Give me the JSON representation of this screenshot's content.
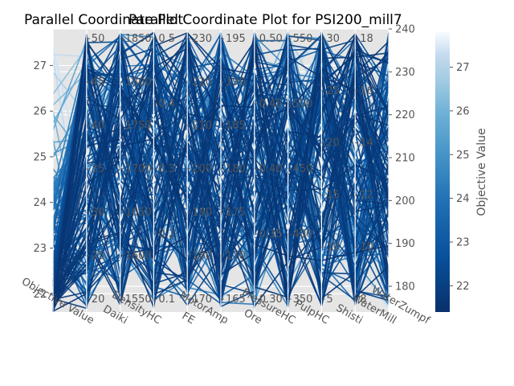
{
  "chart_data": {
    "type": "parallel_coordinates",
    "titles": [
      "Parallel Coordinate Plot",
      "Parallel Coordinate Plot for PSI200_mill7"
    ],
    "axes": [
      "Objective Value",
      "Daiki",
      "DensityHC",
      "FE",
      "MotorAmp",
      "Ore",
      "PressureHC",
      "PulpHC",
      "Shisti",
      "WaterMill",
      "WaterZumpf"
    ],
    "left_axis": {
      "ticks": [
        "22",
        "23",
        "24",
        "25",
        "26",
        "27"
      ],
      "range": [
        21.6,
        27.8
      ]
    },
    "right_axis": {
      "ticks": [
        "180",
        "190",
        "200",
        "210",
        "220",
        "230",
        "240"
      ],
      "range": [
        174,
        240
      ]
    },
    "colorbar": {
      "label": "Objective Value",
      "ticks": [
        "22",
        "23",
        "24",
        "25",
        "26",
        "27"
      ],
      "range": [
        21.4,
        27.8
      ],
      "colormap": "Blues_r"
    },
    "axis_tick_labels": {
      "Daiki": [
        "50",
        "45",
        "40",
        "35",
        "30",
        "25",
        "20"
      ],
      "DensityHC": [
        "1850",
        "1800",
        "1750",
        "1700",
        "1650",
        "1600",
        "1550"
      ],
      "FE": [
        "0.5",
        "0.4",
        "0.3",
        "0.2",
        "0.1"
      ],
      "MotorAmp": [
        "230",
        "220",
        "210",
        "200",
        "190",
        "180",
        "170"
      ],
      "Ore": [
        "195",
        "190",
        "185",
        "180",
        "175",
        "170",
        "165"
      ],
      "PressureHC": [
        "0.50",
        "0.45",
        "0.40",
        "0.35",
        "0.30"
      ],
      "PulpHC": [
        "550",
        "500",
        "450",
        "400",
        "350"
      ],
      "Shisti": [
        "30",
        "25",
        "20",
        "15",
        "10",
        "5"
      ],
      "WaterMill": [
        "18",
        "16",
        "14",
        "12",
        "10",
        "8"
      ]
    },
    "grid": true,
    "background": "#e5e5e5",
    "line_colors": {
      "high": "#f7fbff",
      "mid": "#4a98c9",
      "low": "#08306b"
    }
  }
}
